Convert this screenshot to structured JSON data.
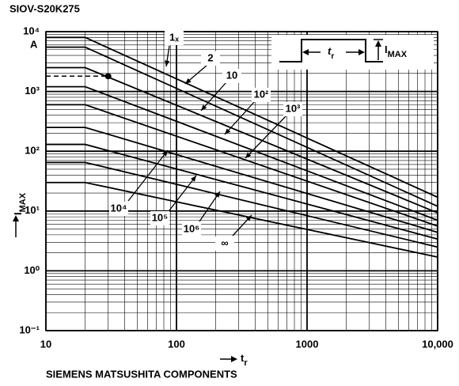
{
  "chart_data": {
    "type": "line",
    "title": "SIOV-S20K275",
    "footer": "SIEMENS MATSUSHITA COMPONENTS",
    "unit": "A",
    "y_label": {
      "main": "I",
      "sub": "MAX"
    },
    "x_label": {
      "main": "t",
      "sub": "r"
    },
    "x_log": true,
    "y_log": true,
    "grid": true,
    "minor_grid": true,
    "color": "#000000",
    "x": [
      10,
      20,
      10000
    ],
    "xlim": [
      10,
      10000
    ],
    "ylim": [
      0.1,
      10000
    ],
    "xticks": [
      10,
      100,
      1000,
      {
        "value": 10000,
        "label": "10,000"
      }
    ],
    "yticks": [
      {
        "value": 0.1,
        "label": "10⁻¹"
      },
      {
        "value": 1,
        "label": "10⁰"
      },
      {
        "value": 10,
        "label": "10¹"
      },
      {
        "value": 100,
        "label": "10²"
      },
      {
        "value": 1000,
        "label": "10³"
      },
      {
        "value": 10000,
        "label": "10⁴"
      }
    ],
    "series": [
      {
        "name": "1ₓ",
        "values": [
          8000,
          8000,
          17
        ]
      },
      {
        "name": "2",
        "values": [
          5500,
          5500,
          12
        ]
      },
      {
        "name": "10",
        "values": [
          2500,
          2500,
          9.3
        ]
      },
      {
        "name": "10²",
        "values": [
          1200,
          1200,
          7
        ]
      },
      {
        "name": "10³",
        "values": [
          600,
          600,
          5.6
        ]
      },
      {
        "name": "10⁴",
        "values": [
          250,
          250,
          4.4
        ]
      },
      {
        "name": "10⁵",
        "values": [
          130,
          130,
          3.4
        ]
      },
      {
        "name": "10⁶",
        "values": [
          65,
          65,
          2.5
        ]
      },
      {
        "name": "∞",
        "values": [
          30,
          30,
          1.7
        ]
      }
    ],
    "marker": {
      "x": 30,
      "y": 1800
    },
    "inset": {
      "t_main": "t",
      "t_sub": "r",
      "i_main": "I",
      "i_sub": "MAX"
    }
  }
}
